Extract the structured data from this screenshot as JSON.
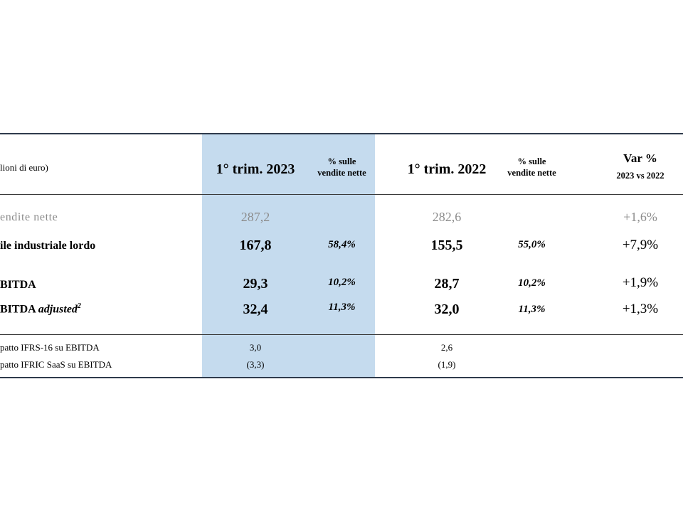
{
  "header": {
    "units": "lioni di euro)",
    "col_q1_2023": "1° trim. 2023",
    "col_pct_2023_line1": "% sulle",
    "col_pct_2023_line2": "vendite nette",
    "col_q1_2022": "1° trim. 2022",
    "col_pct_2022_line1": "% sulle",
    "col_pct_2022_line2": "vendite nette",
    "col_var_line1": "Var %",
    "col_var_line2": "2023 vs 2022"
  },
  "rows": [
    {
      "label": "endite nette",
      "v2023": "287,2",
      "p2023": "",
      "v2022": "282,6",
      "p2022": "",
      "var": "+1,6%"
    },
    {
      "label": "ile industriale lordo",
      "v2023": "167,8",
      "p2023": "58,4%",
      "v2022": "155,5",
      "p2022": "55,0%",
      "var": "+7,9%"
    },
    {
      "label": "BITDA",
      "v2023": "29,3",
      "p2023": "10,2%",
      "v2022": "28,7",
      "p2022": "10,2%",
      "var": "+1,9%"
    },
    {
      "label": "BITDA",
      "label_italic": "adjusted",
      "label_sup": "2",
      "v2023": "32,4",
      "p2023": "11,3%",
      "v2022": "32,0",
      "p2022": "11,3%",
      "var": "+1,3%"
    }
  ],
  "impacts": [
    {
      "label": "patto IFRS-16 su EBITDA",
      "v2023": "3,0",
      "v2022": "2,6"
    },
    {
      "label": "patto IFRIC SaaS su EBITDA",
      "v2023": "(3,3)",
      "v2022": "(1,9)"
    }
  ],
  "colors": {
    "highlight": "#c5dbee",
    "rule": "#2f3b4c",
    "grey_text": "#8c8c8c"
  }
}
